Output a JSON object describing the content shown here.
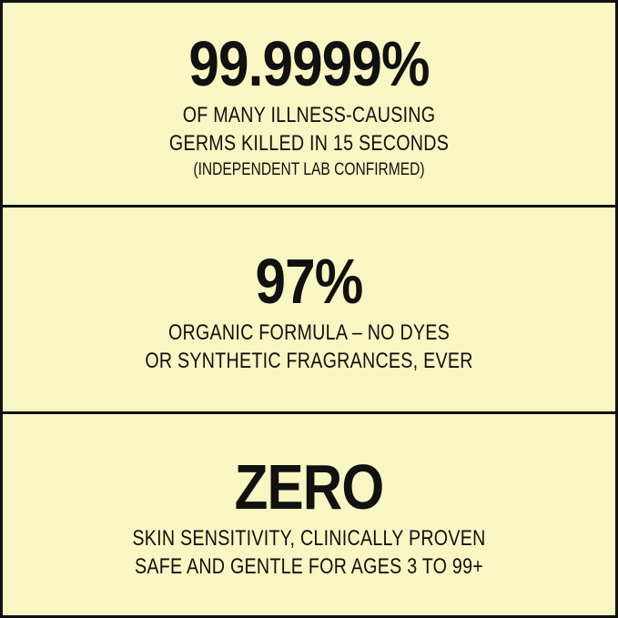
{
  "background_color": "#f8f6c2",
  "border_color": "#111111",
  "stats": [
    {
      "headline": "99.9999%",
      "lines": [
        "OF MANY ILLNESS-CAUSING",
        "GERMS KILLED IN 15 SECONDS"
      ],
      "note": "(INDEPENDENT LAB CONFIRMED)"
    },
    {
      "headline": "97%",
      "lines": [
        "ORGANIC FORMULA – NO DYES",
        "OR SYNTHETIC FRAGRANCES, EVER"
      ]
    },
    {
      "headline": "ZERO",
      "lines": [
        "SKIN SENSITIVITY, CLINICALLY PROVEN",
        "SAFE AND GENTLE FOR  AGES 3 TO 99+"
      ]
    }
  ]
}
